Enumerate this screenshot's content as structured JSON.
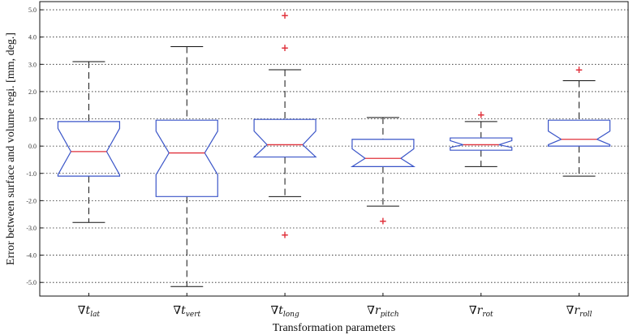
{
  "chart_data": {
    "type": "boxplot",
    "title": "",
    "xlabel": "Transformation parameters",
    "ylabel": "Error between surface and volume regi. [mm, deg.]",
    "ylim": [
      -5.5,
      5.3
    ],
    "yticks": [
      5,
      4,
      3,
      2,
      1,
      0,
      -1,
      -2,
      -3,
      -4,
      -5
    ],
    "ytick_labels": [
      "5.0",
      "4.0",
      "3.0",
      "2.0",
      "1.0",
      "0.0",
      "-1.0",
      "-2.0",
      "-3.0",
      "-4.0",
      "-5.0"
    ],
    "grid": true,
    "notched": true,
    "colors": {
      "box": "#3a55c8",
      "median": "#e0303a",
      "outlier": "#e0303a",
      "whisker": "#111111"
    },
    "categories": [
      {
        "symbol": "∇",
        "var": "t",
        "sub": "lat"
      },
      {
        "symbol": "∇",
        "var": "t",
        "sub": "vert"
      },
      {
        "symbol": "∇",
        "var": "t",
        "sub": "long"
      },
      {
        "symbol": "∇",
        "var": "r",
        "sub": "pitch"
      },
      {
        "symbol": "∇",
        "var": "r",
        "sub": "rot"
      },
      {
        "symbol": "∇",
        "var": "r",
        "sub": "roll"
      }
    ],
    "boxes": [
      {
        "whislo": -2.8,
        "q1": -1.1,
        "med": -0.2,
        "q3": 0.9,
        "whishi": 3.1,
        "notch_lo": -1.05,
        "notch_hi": 0.65,
        "fliers": []
      },
      {
        "whislo": -5.15,
        "q1": -1.85,
        "med": -0.25,
        "q3": 0.95,
        "whishi": 3.65,
        "notch_lo": -1.05,
        "notch_hi": 0.55,
        "fliers": []
      },
      {
        "whislo": -1.85,
        "q1": -0.4,
        "med": 0.05,
        "q3": 0.98,
        "whishi": 2.8,
        "notch_lo": -0.4,
        "notch_hi": 0.55,
        "fliers": [
          4.8,
          3.6,
          -3.25
        ]
      },
      {
        "whislo": -2.2,
        "q1": -0.75,
        "med": -0.45,
        "q3": 0.25,
        "whishi": 1.05,
        "notch_lo": -0.75,
        "notch_hi": -0.1,
        "fliers": [
          -2.75
        ]
      },
      {
        "whislo": -0.75,
        "q1": -0.15,
        "med": 0.05,
        "q3": 0.3,
        "whishi": 0.9,
        "notch_lo": -0.05,
        "notch_hi": 0.2,
        "fliers": [
          1.15
        ]
      },
      {
        "whislo": -1.1,
        "q1": 0.0,
        "med": 0.25,
        "q3": 0.95,
        "whishi": 2.4,
        "notch_lo": 0.05,
        "notch_hi": 0.55,
        "fliers": [
          2.8
        ]
      }
    ]
  }
}
